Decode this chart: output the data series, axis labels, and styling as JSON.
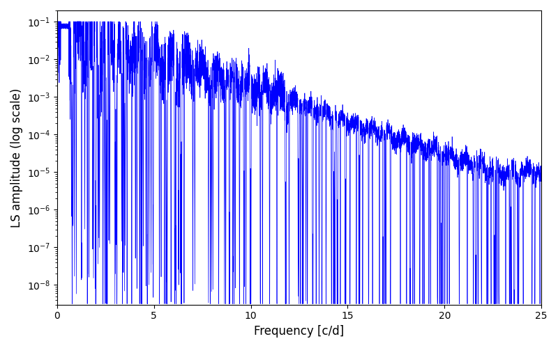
{
  "title": "",
  "xlabel": "Frequency [c/d]",
  "ylabel": "LS amplitude (log scale)",
  "xlim": [
    0,
    25
  ],
  "ylim_low": 3e-09,
  "ylim_high": 0.2,
  "line_color": "#0000FF",
  "line_width": 0.5,
  "background_color": "#ffffff",
  "figsize": [
    8.0,
    5.0
  ],
  "dpi": 100,
  "seed": 12345,
  "n_points": 8000,
  "freq_max": 25.0,
  "max_amplitude": 0.09,
  "noise_floor_log": -4.8,
  "noise_floor_spread": 0.6
}
